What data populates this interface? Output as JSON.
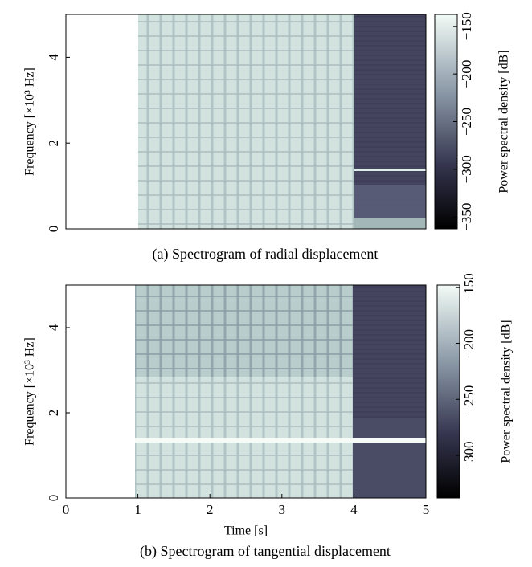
{
  "chart_data": [
    {
      "type": "heatmap",
      "caption": "(a) Spectrogram of radial displacement",
      "ylabel": "Frequency [×10³ Hz]",
      "xlim": [
        0,
        5
      ],
      "ylim": [
        0,
        5
      ],
      "yticks": [
        0,
        2,
        4
      ],
      "colorbar": {
        "label": "Power spectral density [dB]",
        "lim": [
          -362.5,
          -137.5
        ],
        "ticks": [
          {
            "value": -350,
            "label": "−350"
          },
          {
            "value": -300,
            "label": "−300"
          },
          {
            "value": -250,
            "label": "−250"
          },
          {
            "value": -200,
            "label": "−200"
          },
          {
            "value": -150,
            "label": "−150"
          }
        ]
      }
    },
    {
      "type": "heatmap",
      "caption": "(b) Spectrogram of tangential displacement",
      "xlabel": "Time [s]",
      "ylabel": "Frequency [×10³ Hz]",
      "xlim": [
        0,
        5
      ],
      "ylim": [
        0,
        5
      ],
      "xticks": [
        0,
        1,
        2,
        3,
        4,
        5
      ],
      "yticks": [
        0,
        2,
        4
      ],
      "colorbar": {
        "label": "Power spectral density [dB]",
        "lim": [
          -338,
          -148
        ],
        "ticks": [
          {
            "value": -300,
            "label": "−300"
          },
          {
            "value": -250,
            "label": "−250"
          },
          {
            "value": -200,
            "label": "−200"
          },
          {
            "value": -150,
            "label": "−150"
          }
        ]
      }
    }
  ]
}
